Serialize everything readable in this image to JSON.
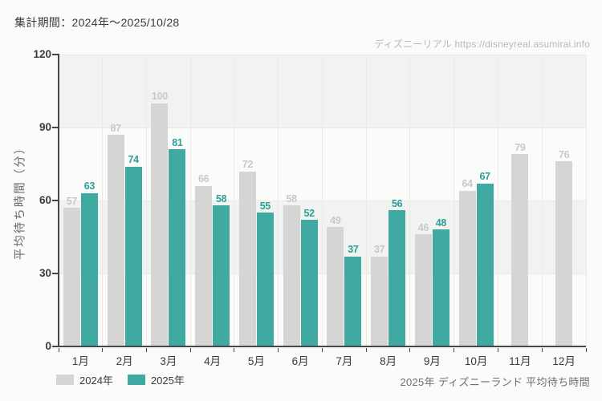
{
  "header": {
    "period_label": "集計期間：2024年～2025/10/28"
  },
  "watermark": {
    "text": "ディズニーリアル https://disneyreal.asumirai.info"
  },
  "caption": {
    "text": "2025年 ディズニーランド 平均待ち時間"
  },
  "legend": [
    {
      "label": "2024年",
      "color": "#d5d6d4"
    },
    {
      "label": "2025年",
      "color": "#40a9a1"
    }
  ],
  "colors": {
    "background": "#fbfcfa",
    "band_shade": "#f0f3ef",
    "gridline": "#e7eae6",
    "axis": "#474747",
    "bar_2024": "#d5d6d4",
    "bar_2025": "#40a9a1",
    "label_2024": "#c7c9c6",
    "label_2025": "#2aa099"
  },
  "chart_data": {
    "type": "bar",
    "title": "2025年 ディズニーランド 平均待ち時間",
    "categories": [
      "1月",
      "2月",
      "3月",
      "4月",
      "5月",
      "6月",
      "7月",
      "8月",
      "9月",
      "10月",
      "11月",
      "12月"
    ],
    "series": [
      {
        "name": "2024年",
        "color": "#d5d6d4",
        "label_color": "#c7c9c6",
        "values": [
          57,
          87,
          100,
          66,
          72,
          58,
          49,
          37,
          46,
          64,
          79,
          76
        ]
      },
      {
        "name": "2025年",
        "color": "#40a9a1",
        "label_color": "#2aa099",
        "values": [
          63,
          74,
          81,
          58,
          55,
          52,
          37,
          56,
          48,
          67,
          null,
          null
        ]
      }
    ],
    "xlabel": "",
    "ylabel": "平均待ち時間（分）",
    "ylim": [
      0,
      120
    ],
    "yticks": [
      0,
      30,
      60,
      90,
      120
    ],
    "grid": true,
    "band_shading": "alternating-from-top",
    "legend_position": "bottom-left",
    "value_labels": true
  }
}
